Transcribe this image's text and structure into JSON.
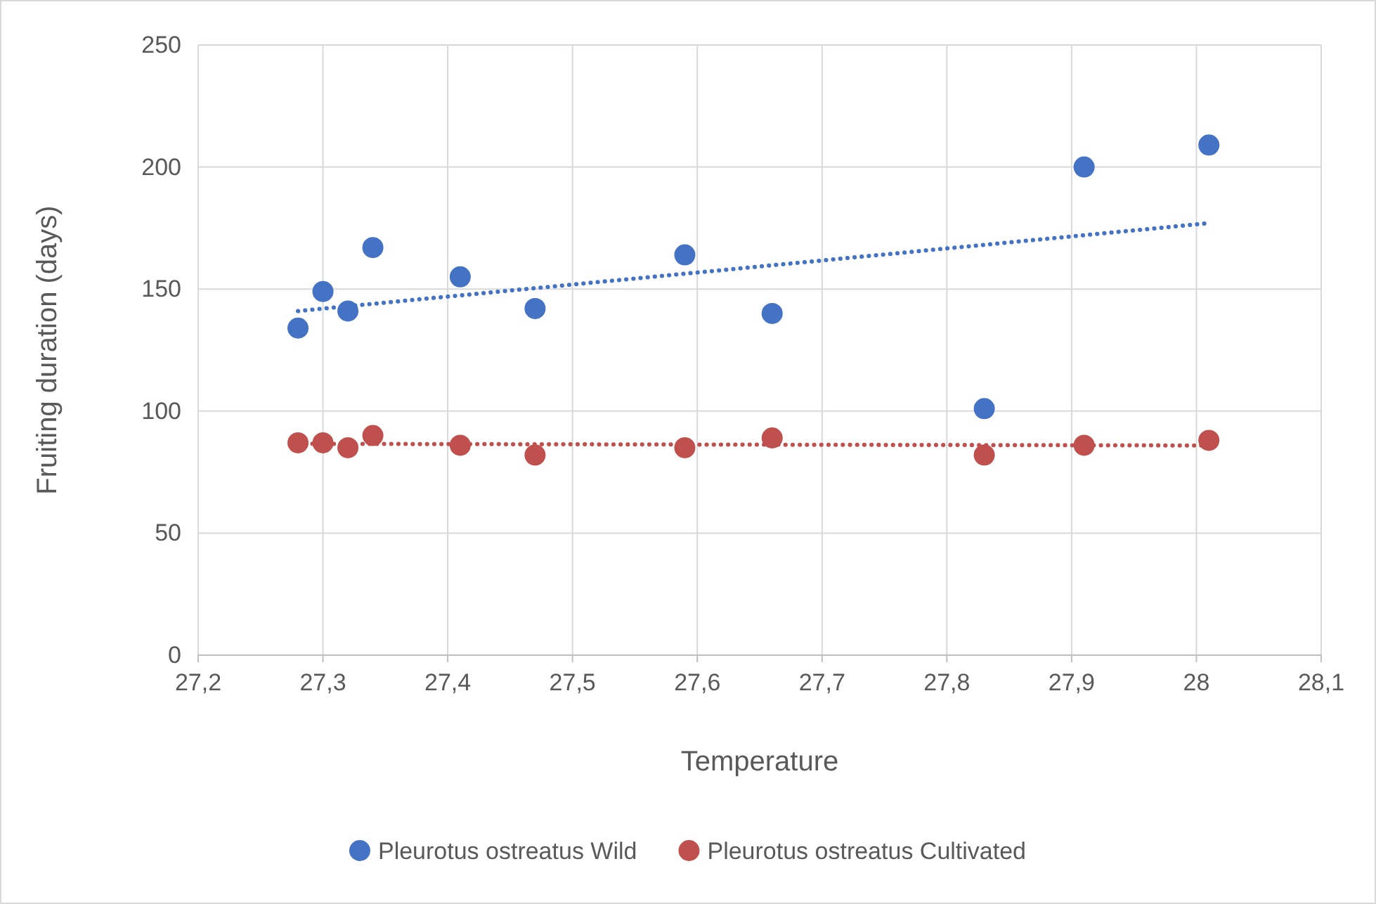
{
  "chart_data": {
    "type": "scatter",
    "xlabel": "Temperature",
    "ylabel": "Fruiting duration (days)",
    "xlim": [
      27.2,
      28.1
    ],
    "xticks": [
      {
        "value": 27.2,
        "label": "27,2"
      },
      {
        "value": 27.3,
        "label": "27,3"
      },
      {
        "value": 27.4,
        "label": "27,4"
      },
      {
        "value": 27.5,
        "label": "27,5"
      },
      {
        "value": 27.6,
        "label": "27,6"
      },
      {
        "value": 27.7,
        "label": "27,7"
      },
      {
        "value": 27.8,
        "label": "27,8"
      },
      {
        "value": 27.9,
        "label": "27,9"
      },
      {
        "value": 28,
        "label": "28"
      },
      {
        "value": 28.1,
        "label": "28,1"
      }
    ],
    "ylim": [
      0,
      250
    ],
    "yticks": [
      0,
      50,
      100,
      150,
      200,
      250
    ],
    "grid": true,
    "legend": "bottom",
    "marker": "circle",
    "series": [
      {
        "name": "Pleurotus ostreatus Wild",
        "color": "#4472c4",
        "x": [
          27.28,
          27.3,
          27.32,
          27.34,
          27.41,
          27.47,
          27.59,
          27.66,
          27.83,
          27.91,
          28.01
        ],
        "values": [
          134,
          149,
          141,
          167,
          155,
          142,
          164,
          140,
          101,
          200,
          209
        ]
      },
      {
        "name": "Pleurotus ostreatus Cultivated",
        "color": "#c0504d",
        "x": [
          27.28,
          27.3,
          27.32,
          27.34,
          27.41,
          27.47,
          27.59,
          27.66,
          27.83,
          27.91,
          28.01
        ],
        "values": [
          87,
          87,
          85,
          90,
          86,
          82,
          85,
          89,
          82,
          86,
          88
        ]
      },
      {
        "type": "line",
        "color": "#4472c4",
        "line_style": "dotted",
        "marker": "none",
        "x": [
          27.28,
          28.01
        ],
        "values": [
          141,
          177
        ]
      },
      {
        "type": "line",
        "color": "#c0504d",
        "line_style": "dotted",
        "marker": "none",
        "x": [
          27.28,
          28.01
        ],
        "values": [
          86.6,
          85.9
        ]
      }
    ]
  }
}
